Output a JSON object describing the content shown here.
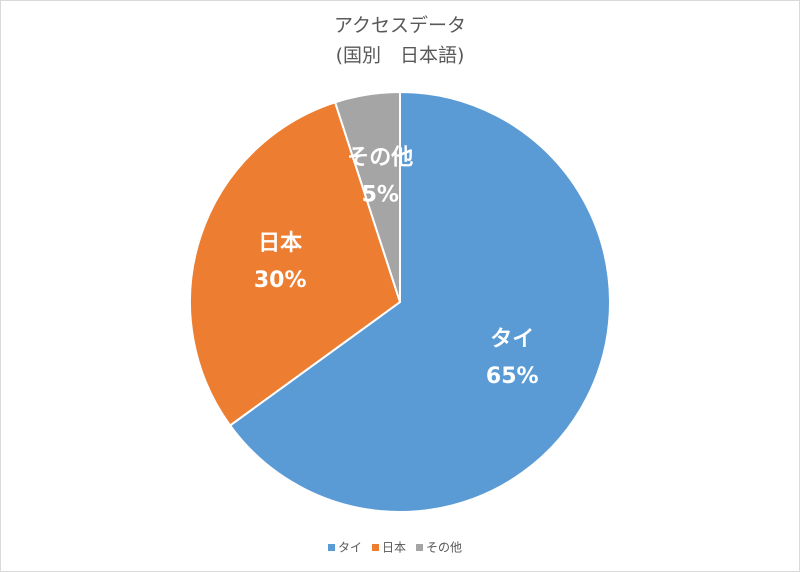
{
  "chart_data": {
    "type": "pie",
    "title": "アクセスデータ",
    "subtitle": "(国別　日本語)",
    "categories": [
      "タイ",
      "日本",
      "その他"
    ],
    "values": [
      65,
      30,
      5
    ],
    "value_labels": [
      "65%",
      "30%",
      "5%"
    ],
    "colors": [
      "#5b9bd5",
      "#ed7d31",
      "#a5a5a5"
    ],
    "legend": "bottom"
  }
}
